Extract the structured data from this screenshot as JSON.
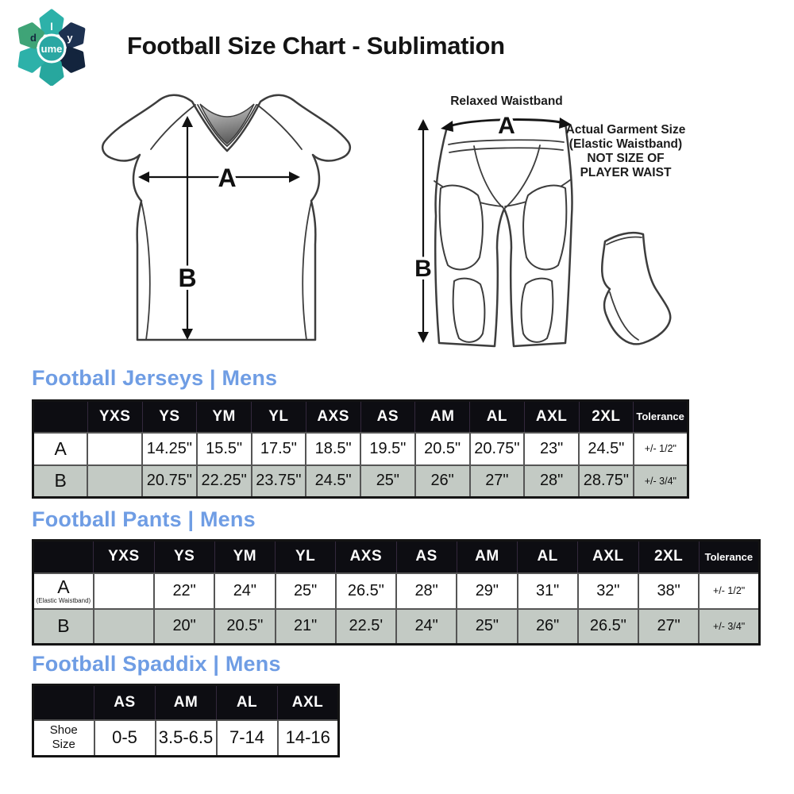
{
  "header": {
    "title": "Football Size Chart - Sublimation",
    "logo": {
      "center_text": "ume",
      "petal_letters": [
        "d",
        "l",
        "y"
      ]
    }
  },
  "diagram": {
    "jersey": {
      "width_label": "A",
      "height_label": "B"
    },
    "pants": {
      "waistband_label": "Relaxed Waistband",
      "width_label": "A",
      "height_label": "B",
      "note_lines": [
        "Actual Garment Size",
        "(Elastic Waistband)",
        "NOT SIZE OF",
        "PLAYER WAIST"
      ]
    }
  },
  "colors": {
    "accent_blue": "#6f9de4",
    "table_header_bg": "#0d0d12",
    "row_shaded_bg": "#c3cac4"
  },
  "tables": [
    {
      "title": "Football Jerseys | Mens",
      "columns": [
        "",
        "YXS",
        "YS",
        "YM",
        "YL",
        "AXS",
        "AS",
        "AM",
        "AL",
        "AXL",
        "2XL",
        "Tolerance"
      ],
      "rows": [
        {
          "label": "A",
          "sublabel": "",
          "cells": [
            "",
            "14.25\"",
            "15.5\"",
            "17.5\"",
            "18.5\"",
            "19.5\"",
            "20.5\"",
            "20.75\"",
            "23\"",
            "24.5\"",
            "+/- 1/2\""
          ]
        },
        {
          "label": "B",
          "sublabel": "",
          "cells": [
            "",
            "20.75\"",
            "22.25\"",
            "23.75\"",
            "24.5\"",
            "25\"",
            "26\"",
            "27\"",
            "28\"",
            "28.75\"",
            "+/- 3/4\""
          ]
        }
      ]
    },
    {
      "title": "Football Pants | Mens",
      "columns": [
        "",
        "YXS",
        "YS",
        "YM",
        "YL",
        "AXS",
        "AS",
        "AM",
        "AL",
        "AXL",
        "2XL",
        "Tolerance"
      ],
      "rows": [
        {
          "label": "A",
          "sublabel": "(Elastic Waistband)",
          "cells": [
            "",
            "22\"",
            "24\"",
            "25\"",
            "26.5\"",
            "28\"",
            "29\"",
            "31\"",
            "32\"",
            "38\"",
            "+/- 1/2\""
          ]
        },
        {
          "label": "B",
          "sublabel": "",
          "cells": [
            "",
            "20\"",
            "20.5\"",
            "21\"",
            "22.5'",
            "24\"",
            "25\"",
            "26\"",
            "26.5\"",
            "27\"",
            "+/- 3/4\""
          ]
        }
      ]
    },
    {
      "title": "Football Spaddix | Mens",
      "columns": [
        "",
        "AS",
        "AM",
        "AL",
        "AXL"
      ],
      "rows": [
        {
          "label": "Shoe Size",
          "sublabel": "",
          "cells": [
            "0-5",
            "3.5-6.5",
            "7-14",
            "14-16"
          ]
        }
      ]
    }
  ]
}
